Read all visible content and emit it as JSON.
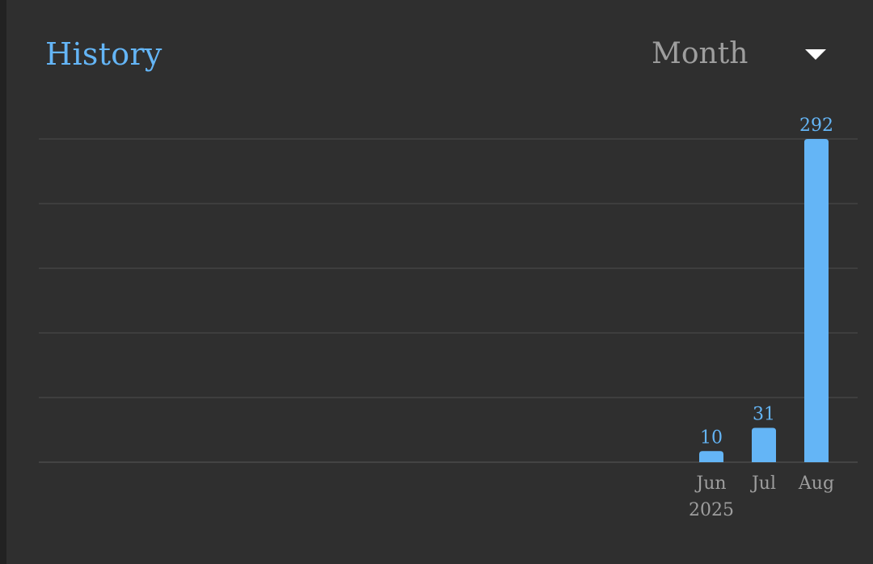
{
  "card": {
    "title": "History",
    "period_select": {
      "selected": "Month",
      "icon": "triangle-down-icon"
    }
  },
  "colors": {
    "accent": "#64b5f6",
    "background": "#2f2f2f",
    "gridline": "#444444",
    "tick_text": "#9e9e9e"
  },
  "chart_data": {
    "type": "bar",
    "categories": [
      "Jun",
      "Jul",
      "Aug"
    ],
    "category_sublabels": [
      "2025",
      "",
      ""
    ],
    "values": [
      10,
      31,
      292
    ],
    "data_labels": [
      "10",
      "31",
      "292"
    ],
    "ylim": [
      0,
      292
    ],
    "grid": true,
    "grid_lines": 5,
    "legend": "none",
    "title": "",
    "xlabel": "",
    "ylabel": ""
  }
}
